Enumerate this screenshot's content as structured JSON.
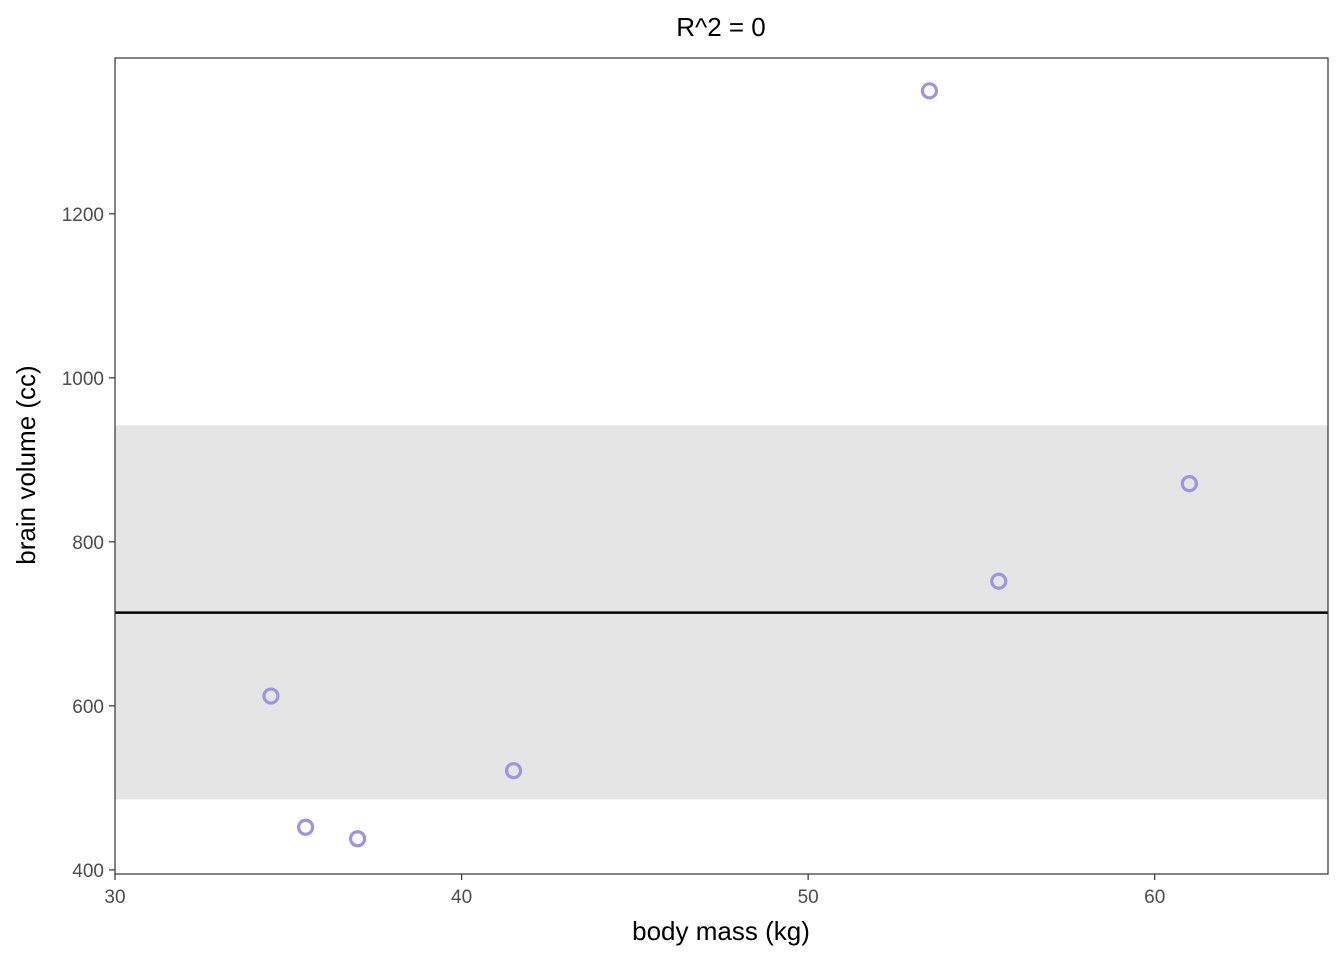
{
  "chart_data": {
    "type": "scatter",
    "title": "R^2 = 0",
    "xlabel": "body mass (kg)",
    "ylabel": "brain volume (cc)",
    "xlim": [
      30,
      65
    ],
    "ylim": [
      395,
      1390
    ],
    "xticks": [
      30,
      40,
      50,
      60
    ],
    "yticks": [
      400,
      600,
      800,
      1000,
      1200
    ],
    "x_tick_labels": [
      "30",
      "40",
      "50",
      "60"
    ],
    "y_tick_labels": [
      "400",
      "600",
      "800",
      "1000",
      "1200"
    ],
    "grid": false,
    "legend": "none",
    "points": [
      {
        "x": 37.0,
        "y": 438
      },
      {
        "x": 35.5,
        "y": 452
      },
      {
        "x": 34.5,
        "y": 612
      },
      {
        "x": 41.5,
        "y": 521
      },
      {
        "x": 55.5,
        "y": 752
      },
      {
        "x": 61.0,
        "y": 871
      },
      {
        "x": 53.5,
        "y": 1350
      }
    ],
    "fit_line": {
      "y": 713.7
    },
    "ribbon": {
      "ymin": 486,
      "ymax": 942
    },
    "colors": {
      "point_stroke": "#9b95e6",
      "ribbon_fill": "#e5e5e5",
      "line": "#000000"
    }
  }
}
